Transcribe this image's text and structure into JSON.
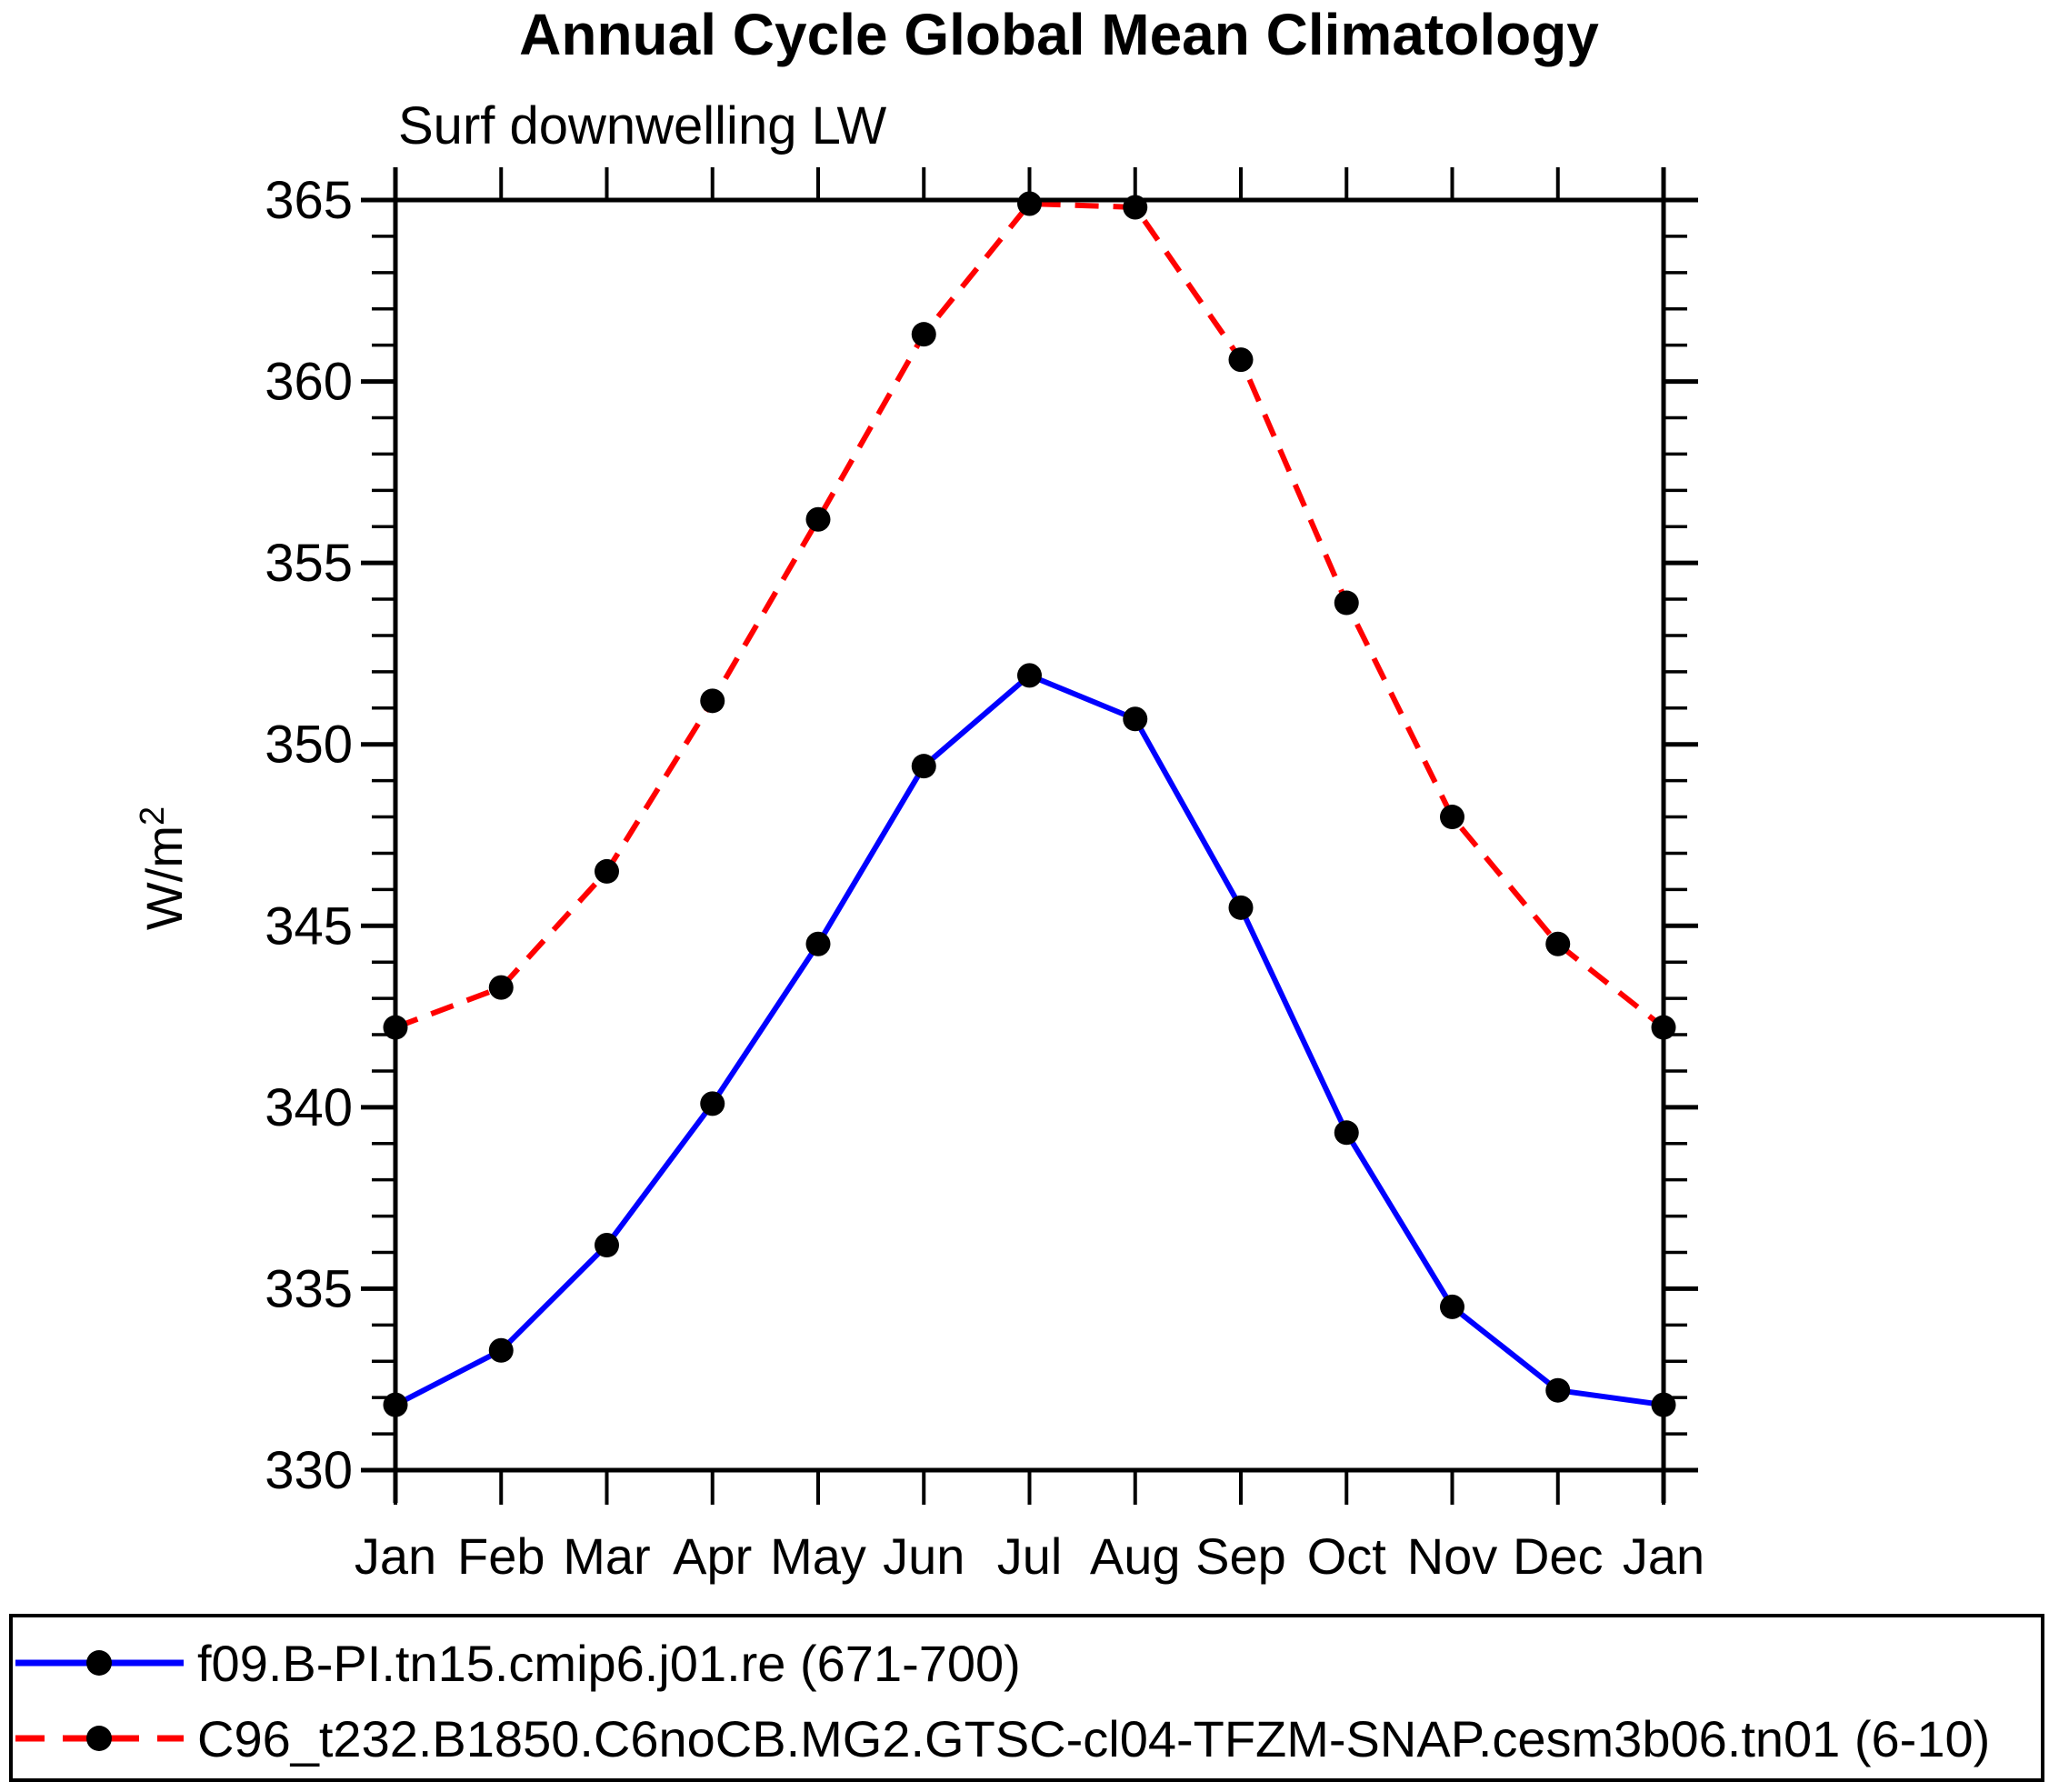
{
  "header": {
    "title": "Annual Cycle Global Mean Climatology",
    "subtitle": "Surf downwelling LW"
  },
  "y_axis": {
    "label_base": "W/m",
    "label_exponent": "2"
  },
  "legend": {
    "items": [
      {
        "label": "f09.B-PI.tn15.cmip6.j01.re (671-700)",
        "color": "#0000ff",
        "line_style": "solid",
        "marker": "filled-circle",
        "marker_color": "#000000"
      },
      {
        "label": "C96_t232.B1850.C6noCB.MG2.GTSC-cl04-TFZM-SNAP.cesm3b06.tn01 (6-10)",
        "color": "#ff0000",
        "line_style": "dashed",
        "marker": "filled-circle",
        "marker_color": "#000000"
      }
    ]
  },
  "chart_data": {
    "type": "line",
    "title": "Annual Cycle Global Mean Climatology",
    "subtitle": "Surf downwelling LW",
    "ylabel": "W/m²",
    "xlabel": "",
    "x_labels": [
      "Jan",
      "Feb",
      "Mar",
      "Apr",
      "May",
      "Jun",
      "Jul",
      "Aug",
      "Sep",
      "Oct",
      "Nov",
      "Dec",
      "Jan"
    ],
    "ylim": [
      330,
      365
    ],
    "y_major_ticks": [
      330,
      335,
      340,
      345,
      350,
      355,
      360,
      365
    ],
    "y_minor_step": 1,
    "grid": false,
    "legend_position": "bottom",
    "series": [
      {
        "name": "f09.B-PI.tn15.cmip6.j01.re (671-700)",
        "color": "#0000ff",
        "style": "solid",
        "marker": "circle",
        "marker_color": "#000000",
        "values": [
          331.8,
          333.3,
          336.2,
          340.1,
          344.5,
          349.4,
          351.9,
          350.7,
          345.5,
          339.3,
          334.5,
          332.2,
          331.8
        ]
      },
      {
        "name": "C96_t232.B1850.C6noCB.MG2.GTSC-cl04-TFZM-SNAP.cesm3b06.tn01 (6-10)",
        "color": "#ff0000",
        "style": "dashed",
        "marker": "circle",
        "marker_color": "#000000",
        "values": [
          342.2,
          343.3,
          346.5,
          351.2,
          356.2,
          361.3,
          364.9,
          364.8,
          360.6,
          353.9,
          348.0,
          344.5,
          342.2
        ]
      }
    ]
  }
}
